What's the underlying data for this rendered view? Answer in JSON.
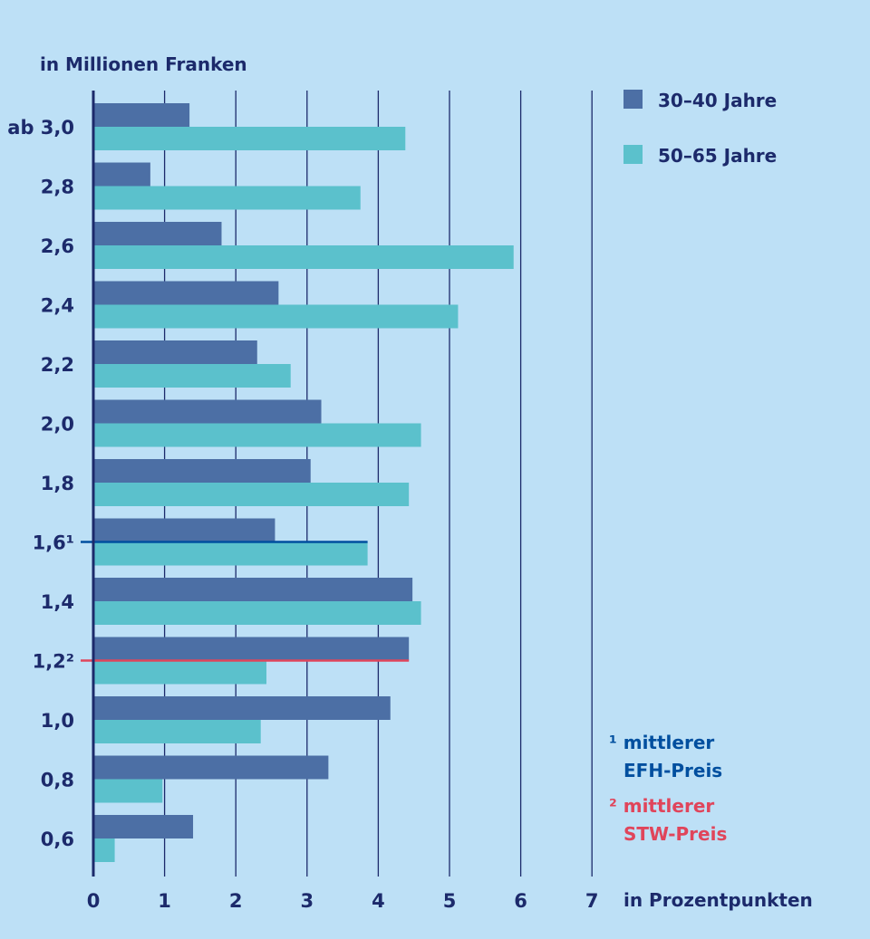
{
  "chart_data": {
    "type": "bar",
    "orientation": "horizontal",
    "ylabel": "in Millionen Franken",
    "xlabel": "in Prozentpunkten",
    "xlim": [
      0,
      7
    ],
    "xticks": [
      "0",
      "1",
      "2",
      "3",
      "4",
      "5",
      "6",
      "7"
    ],
    "grid": "vertical",
    "legend_position": "top-right",
    "categories": [
      "ab 3,0",
      "2,8",
      "2,6",
      "2,4",
      "2,2",
      "2,0",
      "1,8",
      "1,6¹",
      "1,4",
      "1,2²",
      "1,0",
      "0,8",
      "0,6"
    ],
    "series": [
      {
        "name": "30–40 Jahre",
        "color": "#4c6fa5",
        "values": [
          1.35,
          0.8,
          1.8,
          2.6,
          2.3,
          3.2,
          3.05,
          2.55,
          4.48,
          4.43,
          4.17,
          3.3,
          1.4
        ]
      },
      {
        "name": "50–65 Jahre",
        "color": "#5bc1cc",
        "values": [
          4.38,
          3.75,
          5.9,
          5.12,
          2.77,
          4.6,
          4.43,
          3.85,
          4.6,
          2.43,
          2.35,
          0.97,
          0.3
        ]
      }
    ],
    "reference_lines": [
      {
        "category": "1,6¹",
        "value": 3.85,
        "color": "#004f9f"
      },
      {
        "category": "1,2²",
        "value": 4.43,
        "color": "#e0455b"
      }
    ],
    "highlight_categories": {
      "1,6¹": "#004f9f",
      "1,2²": "#e0455b"
    },
    "notes": [
      {
        "lines": [
          "¹ mittlerer",
          "EFH-Preis"
        ],
        "color": "#004f9f"
      },
      {
        "lines": [
          "² mittlerer",
          "STW-Preis"
        ],
        "color": "#e0455b"
      }
    ],
    "colors": {
      "background": "#bde0f6",
      "text": "#1c2a6b",
      "axis": "#1c2a6b",
      "grid": "#1c2a6b"
    }
  }
}
